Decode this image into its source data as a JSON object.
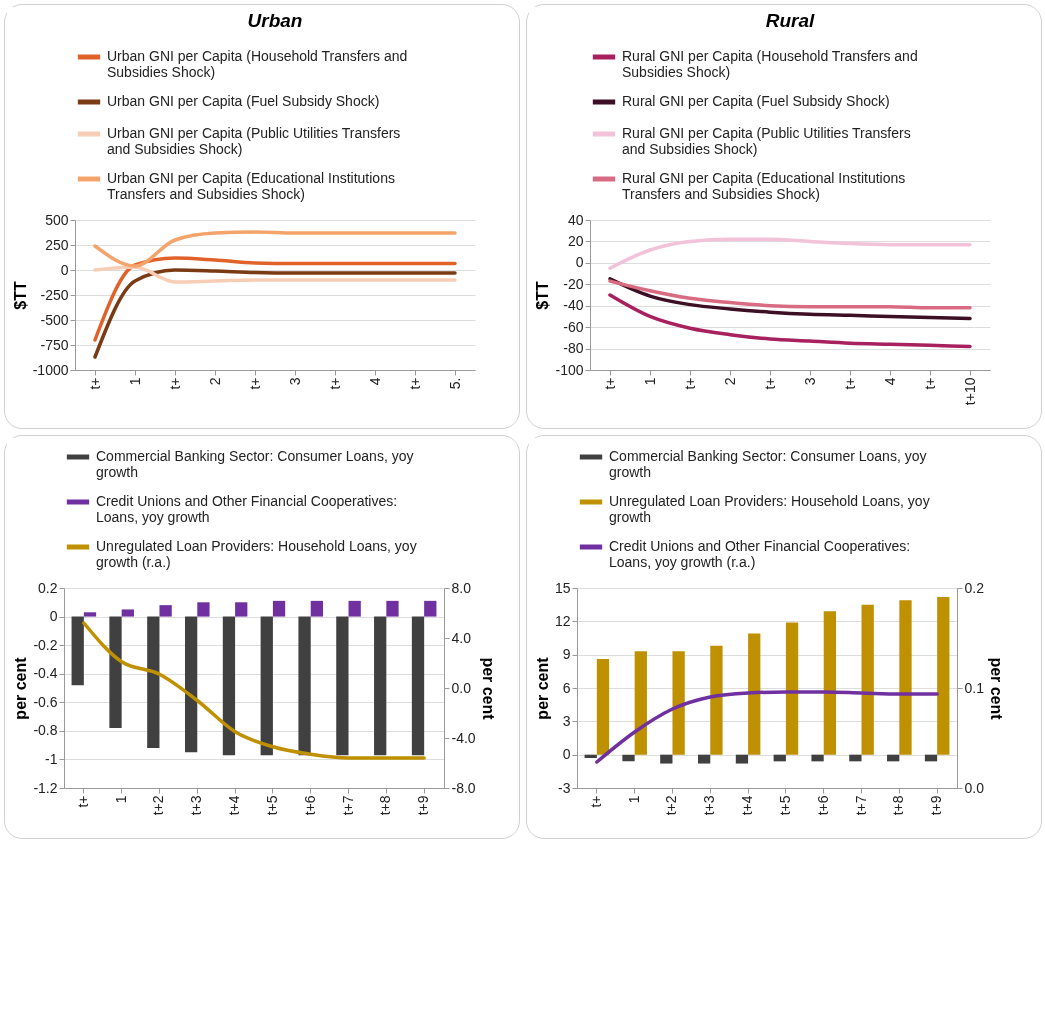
{
  "chart_data": [
    {
      "type": "line",
      "title": "Urban",
      "ylabel": "$TT",
      "legend": "top",
      "grid": "y",
      "categories": [
        "t+",
        "1",
        "t+",
        "2",
        "t+",
        "3",
        "t+",
        "4",
        "t+",
        "5."
      ],
      "ylim": [
        -1000,
        500
      ],
      "yticks": [
        -1000,
        -750,
        -500,
        -250,
        0,
        250,
        500
      ],
      "series": [
        {
          "name": "Urban GNI per Capita (Household Transfers and Subsidies Shock)",
          "color": "#e0622a",
          "values": [
            -700,
            50,
            120,
            100,
            70,
            65,
            65,
            65,
            65,
            65
          ]
        },
        {
          "name": "Urban GNI per Capita (Fuel Subsidy Shock)",
          "color": "#7a3a14",
          "values": [
            -870,
            -110,
            0,
            -10,
            -25,
            -30,
            -30,
            -30,
            -30,
            -30
          ]
        },
        {
          "name": "Urban GNI per Capita (Public Utilities Transfers and Subsidies Shock)",
          "color": "#f7cdb5",
          "values": [
            0,
            30,
            -120,
            -110,
            -100,
            -100,
            -100,
            -100,
            -100,
            -100
          ]
        },
        {
          "name": "Urban GNI per Capita (Educational Institutions Transfers and Subsidies Shock)",
          "color": "#f4a46b",
          "values": [
            240,
            40,
            300,
            370,
            380,
            370,
            370,
            370,
            370,
            370
          ]
        }
      ]
    },
    {
      "type": "line",
      "title": "Rural",
      "ylabel": "$TT",
      "legend": "top",
      "grid": "y",
      "categories": [
        "t+",
        "1",
        "t+",
        "2",
        "t+",
        "3",
        "t+",
        "4",
        "t+",
        "t+10"
      ],
      "ylim": [
        -100,
        40
      ],
      "yticks": [
        -100,
        -80,
        -60,
        -40,
        -20,
        0,
        20,
        40
      ],
      "series": [
        {
          "name": "Rural GNI per Capita (Household Transfers and Subsidies Shock)",
          "color": "#a8205e",
          "values": [
            -30,
            -50,
            -61,
            -67,
            -71,
            -73,
            -75,
            -76,
            -77,
            -78
          ]
        },
        {
          "name": "Rural GNI per Capita (Fuel Subsidy Shock)",
          "color": "#3d0f24",
          "values": [
            -15,
            -31,
            -39,
            -43,
            -46,
            -48,
            -49,
            -50,
            -51,
            -52
          ]
        },
        {
          "name": "Rural GNI per Capita (Public Utilities Transfers and Subsidies Shock)",
          "color": "#f2c2d9",
          "values": [
            -5,
            12,
            20,
            22,
            22,
            20,
            18,
            17,
            17,
            17
          ]
        },
        {
          "name": "Rural GNI per Capita (Educational Institutions Transfers and Subsidies Shock)",
          "color": "#d86a82",
          "values": [
            -17,
            -26,
            -33,
            -37,
            -40,
            -41,
            -41,
            -41,
            -42,
            -42
          ]
        }
      ]
    },
    {
      "type": "bar",
      "ylabel": "per cent",
      "y2label": "per cent",
      "legend": "top",
      "grid": "y",
      "categories": [
        "t+",
        "1",
        "t+2",
        "t+3",
        "t+4",
        "t+5",
        "t+6",
        "t+7",
        "t+8",
        "t+9"
      ],
      "ylim": [
        -1.2,
        0.2
      ],
      "yticks": [
        -1.2,
        -1,
        -0.8,
        -0.6,
        -0.4,
        -0.2,
        0,
        0.2
      ],
      "y2lim": [
        -8,
        8
      ],
      "y2ticks": [
        {
          "value": -8,
          "label": "-8.0"
        },
        {
          "value": -4,
          "label": "-4.0"
        },
        {
          "value": 0,
          "label": "0.0"
        },
        {
          "value": 4,
          "label": "4.0"
        },
        {
          "value": 8,
          "label": "8.0"
        }
      ],
      "series": [
        {
          "name": "Commercial Banking Sector: Consumer Loans, yoy growth",
          "type": "bar",
          "color": "#404040",
          "values": [
            -0.48,
            -0.78,
            -0.92,
            -0.95,
            -0.97,
            -0.97,
            -0.97,
            -0.97,
            -0.97,
            -0.97
          ]
        },
        {
          "name": "Credit Unions and Other Financial Cooperatives: Loans, yoy growth",
          "type": "bar",
          "color": "#7030a0",
          "values": [
            0.03,
            0.05,
            0.08,
            0.1,
            0.1,
            0.11,
            0.11,
            0.11,
            0.11,
            0.11
          ]
        },
        {
          "name": "Unregulated Loan Providers: Household Loans, yoy growth (r.a.)",
          "type": "line",
          "axis": "y2",
          "color": "#bf9000",
          "values": [
            5.2,
            2.1,
            1.1,
            -1.0,
            -3.5,
            -4.7,
            -5.3,
            -5.6,
            -5.6,
            -5.6
          ]
        }
      ]
    },
    {
      "type": "bar",
      "ylabel": "per cent",
      "y2label": "per cent",
      "legend": "top",
      "grid": "y",
      "categories": [
        "t+",
        "1",
        "t+2",
        "t+3",
        "t+4",
        "t+5",
        "t+6",
        "t+7",
        "t+8",
        "t+9"
      ],
      "ylim": [
        -3,
        15
      ],
      "yticks": [
        -3,
        0,
        3,
        6,
        9,
        12,
        15
      ],
      "y2lim": [
        0,
        0.2
      ],
      "y2ticks": [
        {
          "value": 0,
          "label": "0.0"
        },
        0.1,
        0.2
      ],
      "series": [
        {
          "name": "Commercial Banking Sector: Consumer Loans, yoy growth",
          "type": "bar",
          "color": "#404040",
          "values": [
            -0.3,
            -0.6,
            -0.8,
            -0.8,
            -0.8,
            -0.6,
            -0.6,
            -0.6,
            -0.6,
            -0.6
          ]
        },
        {
          "name": "Unregulated Loan Providers: Household Loans, yoy growth",
          "type": "bar",
          "color": "#bf9000",
          "values": [
            8.6,
            9.3,
            9.3,
            9.8,
            10.9,
            11.9,
            12.9,
            13.5,
            13.9,
            14.2
          ]
        },
        {
          "name": "Credit Unions and Other Financial Cooperatives: Loans, yoy growth (r.a.)",
          "type": "line",
          "axis": "y2",
          "color": "#7030a0",
          "values": [
            0.026,
            0.056,
            0.079,
            0.091,
            0.095,
            0.096,
            0.096,
            0.095,
            0.094,
            0.094
          ]
        }
      ]
    }
  ]
}
